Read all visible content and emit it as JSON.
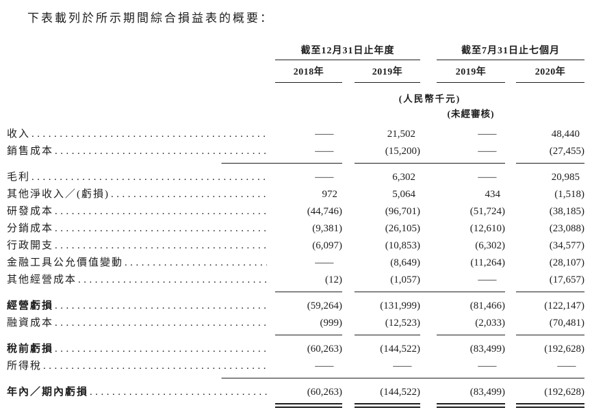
{
  "page": {
    "title": "下表載列於所示期間綜合損益表的概要："
  },
  "table": {
    "col_groups": [
      {
        "label": "截至12月31日止年度",
        "years": [
          "2018年",
          "2019年"
        ]
      },
      {
        "label": "截至7月31日止七個月",
        "years": [
          "2019年",
          "2020年"
        ]
      }
    ],
    "unit_note": "(人民幣千元)",
    "audit_note": "(未經審核)",
    "rows": [
      {
        "label": "收入",
        "values": [
          "—",
          "21,502",
          "—",
          "48,440"
        ]
      },
      {
        "label": "銷售成本",
        "values": [
          "—",
          "(15,200)",
          "—",
          "(27,455)"
        ]
      },
      {
        "label": "毛利",
        "values": [
          "—",
          "6,302",
          "—",
          "20,985"
        ]
      },
      {
        "label": "其他淨收入／(虧損)",
        "values": [
          "972",
          "5,064",
          "434",
          "(1,518)"
        ]
      },
      {
        "label": "研發成本",
        "values": [
          "(44,746)",
          "(96,701)",
          "(51,724)",
          "(38,185)"
        ]
      },
      {
        "label": "分銷成本",
        "values": [
          "(9,381)",
          "(26,105)",
          "(12,610)",
          "(23,088)"
        ]
      },
      {
        "label": "行政開支",
        "values": [
          "(6,097)",
          "(10,853)",
          "(6,302)",
          "(34,577)"
        ]
      },
      {
        "label": "金融工具公允價值變動",
        "values": [
          "—",
          "(8,649)",
          "(11,264)",
          "(28,107)"
        ]
      },
      {
        "label": "其他經營成本",
        "values": [
          "(12)",
          "(1,057)",
          "—",
          "(17,657)"
        ]
      },
      {
        "label": "經營虧損",
        "values": [
          "(59,264)",
          "(131,999)",
          "(81,466)",
          "(122,147)"
        ]
      },
      {
        "label": "融資成本",
        "values": [
          "(999)",
          "(12,523)",
          "(2,033)",
          "(70,481)"
        ]
      },
      {
        "label": "稅前虧損",
        "values": [
          "(60,263)",
          "(144,522)",
          "(83,499)",
          "(192,628)"
        ]
      },
      {
        "label": "所得稅",
        "values": [
          "—",
          "—",
          "—",
          "—"
        ]
      },
      {
        "label": "年內／期內虧損",
        "values": [
          "(60,263)",
          "(144,522)",
          "(83,499)",
          "(192,628)"
        ]
      }
    ]
  }
}
